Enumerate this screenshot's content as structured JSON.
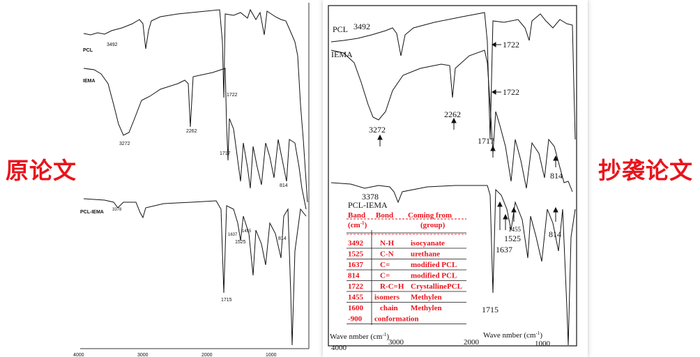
{
  "side_labels": {
    "original": "原论文",
    "plagiarized": "抄袭论文"
  },
  "chart_data": [
    {
      "type": "line",
      "panel": "original",
      "x_ticks": [
        "4000",
        "3000",
        "2000",
        "1000"
      ],
      "series": [
        {
          "name": "PCL",
          "annotations": [
            "3492"
          ]
        },
        {
          "name": "IEMA",
          "annotations": [
            "1722",
            "3272",
            "2262",
            "1717",
            "814"
          ]
        },
        {
          "name": "PCL-IEMA",
          "annotations": [
            "3378",
            "1637",
            "1455",
            "1525",
            "814",
            "1715"
          ]
        }
      ]
    },
    {
      "type": "line",
      "panel": "plagiarized",
      "x_label_left": "Wave nmber (cm",
      "x_label_left_sup": "-1",
      "x_label_right": "Wave nmber (cm",
      "x_label_right_sup": "-1",
      "x_ticks": [
        "4000",
        "3000",
        "2000",
        "1000"
      ],
      "series": [
        {
          "name": "PCL",
          "annotations": [
            "3492",
            "1722"
          ]
        },
        {
          "name": "IEMA",
          "annotations": [
            "1722",
            "3272",
            "2262",
            "1717",
            "814"
          ]
        },
        {
          "name": "PCL-IEMA",
          "annotations": [
            "3378",
            "1455",
            "1525",
            "1637",
            "814",
            "1715"
          ]
        }
      ],
      "table": {
        "headers": [
          "Band",
          "Bond",
          "Coming from"
        ],
        "headers_line2": [
          "(cm",
          "(group)"
        ],
        "headers_line2_sup": "-1",
        "header_suffix": ")",
        "rows": [
          [
            "3492",
            "N-H",
            "isocyanate"
          ],
          [
            "1525",
            "C-N",
            "urethane"
          ],
          [
            "1637",
            "C=",
            "modified PCL"
          ],
          [
            "814",
            "C=",
            "modified PCL"
          ],
          [
            "1722",
            "R-C=H",
            "CrystallinePCL"
          ],
          [
            "1455",
            "isomers",
            "Methylen"
          ],
          [
            "1600",
            "chain",
            "Methylen"
          ],
          [
            "-900",
            "conformation",
            ""
          ]
        ]
      }
    }
  ]
}
